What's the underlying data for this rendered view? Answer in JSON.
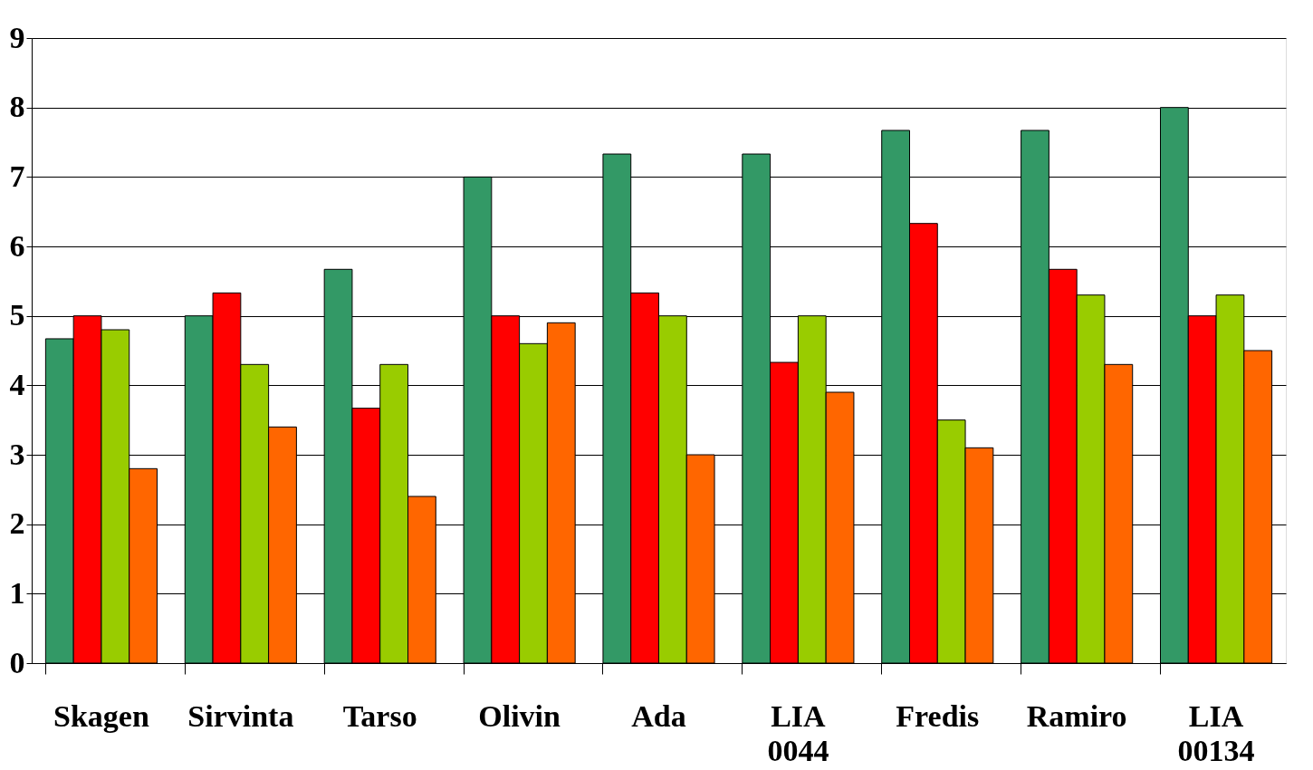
{
  "chart_data": {
    "type": "bar",
    "categories": [
      "Skagen",
      "Sirvinta",
      "Tarso",
      "Olivin",
      "Ada",
      "LIA 0044",
      "Fredis",
      "Ramiro",
      "LIA 00134"
    ],
    "series": [
      {
        "color": "#339966",
        "values": [
          4.67,
          5.0,
          5.67,
          7.0,
          7.33,
          7.33,
          7.67,
          7.67,
          8.0
        ]
      },
      {
        "color": "#ff0000",
        "values": [
          5.0,
          5.33,
          3.67,
          5.0,
          5.33,
          4.33,
          6.33,
          5.67,
          5.0
        ]
      },
      {
        "color": "#99cc00",
        "values": [
          4.8,
          4.3,
          4.3,
          4.6,
          5.0,
          5.0,
          3.5,
          5.3,
          5.3
        ]
      },
      {
        "color": "#ff6600",
        "values": [
          2.8,
          3.4,
          2.4,
          4.9,
          3.0,
          3.9,
          3.1,
          4.3,
          4.5
        ]
      }
    ],
    "ylim": [
      0,
      9
    ],
    "yticks": [
      0,
      1,
      2,
      3,
      4,
      5,
      6,
      7,
      8,
      9
    ],
    "grid": "y",
    "legend": false
  }
}
